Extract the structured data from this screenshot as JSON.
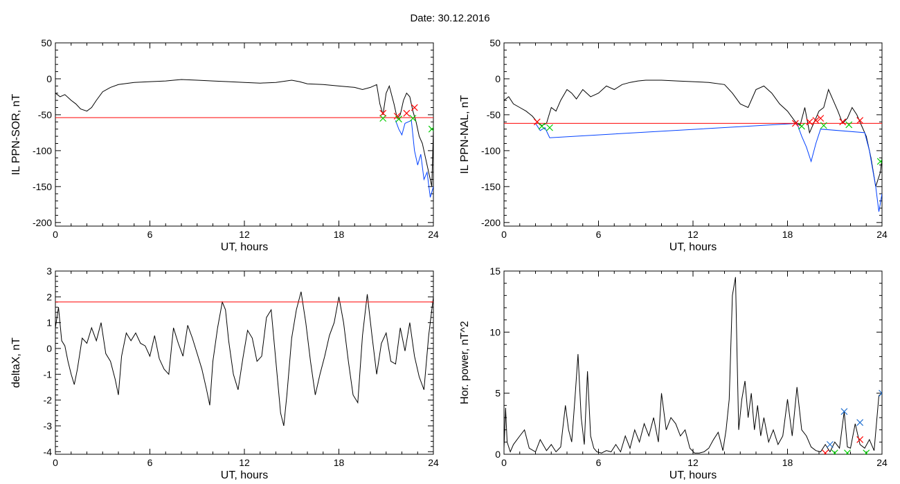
{
  "header": {
    "date_label": "Date:  30.12.2016"
  },
  "chart_data": [
    {
      "id": "top-left",
      "type": "line",
      "xlabel": "UT, hours",
      "ylabel": "IL PPN-SOR, nT",
      "xlim": [
        0,
        24
      ],
      "ylim": [
        -205,
        50
      ],
      "xticks": [
        0,
        6,
        12,
        18,
        24
      ],
      "yticks": [
        50,
        0,
        -50,
        -100,
        -150,
        -200
      ],
      "threshold": -54,
      "threshold_color": "#ff0000",
      "series": [
        {
          "color": "#000000",
          "x": [
            0,
            0.3,
            0.6,
            1.0,
            1.3,
            1.6,
            2.0,
            2.3,
            2.6,
            3.0,
            3.5,
            4.0,
            5.0,
            6.0,
            7.0,
            8.0,
            9.0,
            10.0,
            11.0,
            12.0,
            13.0,
            14.0,
            15.0,
            15.5,
            16.0,
            17.0,
            18.0,
            19.0,
            19.5,
            20.0,
            20.4,
            20.6,
            20.8,
            21.0,
            21.2,
            21.5,
            21.7,
            21.9,
            22.1,
            22.3,
            22.5,
            22.7,
            22.9,
            23.1,
            23.3,
            23.5,
            23.7,
            23.9,
            24.0
          ],
          "y": [
            -20,
            -25,
            -22,
            -30,
            -35,
            -42,
            -45,
            -40,
            -30,
            -18,
            -12,
            -8,
            -5,
            -4,
            -3,
            -1,
            -2,
            -3,
            -4,
            -5,
            -6,
            -5,
            -2,
            -4,
            -7,
            -8,
            -10,
            -12,
            -15,
            -12,
            -8,
            -35,
            -50,
            -20,
            -10,
            -35,
            -55,
            -50,
            -30,
            -20,
            -25,
            -45,
            -60,
            -80,
            -90,
            -110,
            -130,
            -150,
            -70
          ]
        },
        {
          "color": "#0040ff",
          "x": [
            21.6,
            21.8,
            22.0,
            22.2,
            22.6,
            22.8,
            23.0,
            23.2,
            23.4,
            23.6,
            23.8,
            24.0
          ],
          "y": [
            -58,
            -70,
            -78,
            -62,
            -58,
            -100,
            -120,
            -105,
            -140,
            -130,
            -165,
            -150
          ]
        }
      ],
      "markers": [
        {
          "symbol": "x",
          "color": "#ff0000",
          "points": [
            [
              20.8,
              -48
            ],
            [
              21.7,
              -52
            ],
            [
              22.3,
              -48
            ],
            [
              22.8,
              -40
            ]
          ]
        },
        {
          "symbol": "x",
          "color": "#00cc00",
          "points": [
            [
              20.8,
              -55
            ],
            [
              21.8,
              -56
            ],
            [
              22.7,
              -55
            ],
            [
              23.9,
              -70
            ]
          ]
        }
      ]
    },
    {
      "id": "top-right",
      "type": "line",
      "xlabel": "UT, hours",
      "ylabel": "IL PPN-NAL, nT",
      "xlim": [
        0,
        24
      ],
      "ylim": [
        -205,
        50
      ],
      "xticks": [
        0,
        6,
        12,
        18,
        24
      ],
      "yticks": [
        50,
        0,
        -50,
        -100,
        -150,
        -200
      ],
      "threshold": -62,
      "threshold_color": "#ff0000",
      "series": [
        {
          "color": "#000000",
          "x": [
            0,
            0.3,
            0.6,
            1.0,
            1.4,
            1.8,
            2.1,
            2.4,
            2.7,
            3.0,
            3.3,
            3.6,
            4.0,
            4.3,
            4.6,
            5.0,
            5.5,
            6.0,
            6.5,
            7.0,
            7.5,
            8.0,
            8.5,
            9.0,
            10.0,
            11.0,
            12.0,
            13.0,
            14.0,
            14.5,
            15.0,
            15.5,
            16.0,
            16.5,
            17.0,
            17.5,
            18.0,
            18.5,
            18.8,
            19.1,
            19.4,
            19.7,
            20.0,
            20.3,
            20.6,
            20.9,
            21.2,
            21.5,
            21.8,
            22.1,
            22.4,
            22.7,
            23.0,
            23.3,
            23.6,
            23.9,
            24.0
          ],
          "y": [
            -30,
            -25,
            -35,
            -40,
            -45,
            -52,
            -60,
            -65,
            -62,
            -40,
            -45,
            -30,
            -15,
            -20,
            -28,
            -15,
            -25,
            -20,
            -10,
            -15,
            -8,
            -5,
            -3,
            -2,
            -2,
            -3,
            -4,
            -5,
            -8,
            -20,
            -35,
            -40,
            -15,
            -10,
            -20,
            -35,
            -45,
            -60,
            -65,
            -40,
            -75,
            -60,
            -45,
            -40,
            -15,
            -30,
            -45,
            -62,
            -55,
            -40,
            -50,
            -65,
            -80,
            -110,
            -150,
            -130,
            -110
          ]
        },
        {
          "color": "#0040ff",
          "x": [
            2.0,
            2.3,
            2.6,
            2.9,
            18.6,
            18.9,
            19.2,
            19.5,
            19.8,
            20.1,
            22.9,
            23.2,
            23.4,
            23.6,
            23.8,
            24.0
          ],
          "y": [
            -62,
            -72,
            -68,
            -82,
            -62,
            -80,
            -95,
            -115,
            -90,
            -70,
            -75,
            -100,
            -125,
            -150,
            -185,
            -160
          ]
        }
      ],
      "markers": [
        {
          "symbol": "x",
          "color": "#ff0000",
          "points": [
            [
              2.1,
              -60
            ],
            [
              18.5,
              -62
            ],
            [
              19.4,
              -60
            ],
            [
              19.8,
              -58
            ],
            [
              20.1,
              -55
            ],
            [
              21.5,
              -60
            ],
            [
              22.6,
              -58
            ]
          ]
        },
        {
          "symbol": "x",
          "color": "#00cc00",
          "points": [
            [
              2.4,
              -66
            ],
            [
              2.9,
              -68
            ],
            [
              18.9,
              -66
            ],
            [
              20.3,
              -65
            ],
            [
              21.9,
              -64
            ],
            [
              23.9,
              -115
            ]
          ]
        }
      ]
    },
    {
      "id": "bottom-left",
      "type": "line",
      "xlabel": "UT, hours",
      "ylabel": "deltaX, nT",
      "xlim": [
        0,
        24
      ],
      "ylim": [
        -4.1,
        3
      ],
      "xticks": [
        0,
        6,
        12,
        18,
        24
      ],
      "yticks": [
        3,
        2,
        1,
        0,
        -1,
        -2,
        -3,
        -4
      ],
      "threshold": 1.8,
      "threshold_color": "#ff0000",
      "series": [
        {
          "color": "#000000",
          "x": [
            0,
            0.2,
            0.4,
            0.6,
            0.8,
            1.0,
            1.2,
            1.4,
            1.7,
            2.0,
            2.3,
            2.6,
            2.9,
            3.2,
            3.5,
            3.8,
            4.0,
            4.2,
            4.5,
            4.8,
            5.1,
            5.4,
            5.7,
            6.0,
            6.3,
            6.6,
            6.9,
            7.2,
            7.5,
            7.8,
            8.1,
            8.4,
            8.7,
            9.0,
            9.3,
            9.6,
            9.8,
            10.0,
            10.3,
            10.6,
            10.8,
            11.0,
            11.3,
            11.6,
            11.9,
            12.2,
            12.5,
            12.8,
            13.1,
            13.4,
            13.7,
            14.0,
            14.3,
            14.5,
            14.7,
            15.0,
            15.3,
            15.6,
            15.9,
            16.2,
            16.5,
            16.8,
            17.1,
            17.4,
            17.7,
            18.0,
            18.3,
            18.6,
            18.9,
            19.2,
            19.5,
            19.8,
            20.1,
            20.4,
            20.7,
            21.0,
            21.3,
            21.6,
            21.9,
            22.2,
            22.5,
            22.8,
            23.1,
            23.4,
            23.7,
            24.0
          ],
          "y": [
            0.8,
            1.6,
            0.3,
            0.1,
            -0.5,
            -1.0,
            -1.4,
            -0.8,
            0.4,
            0.2,
            0.8,
            0.3,
            1.0,
            -0.2,
            -0.5,
            -1.2,
            -1.8,
            -0.3,
            0.6,
            0.3,
            0.6,
            0.2,
            0.1,
            -0.3,
            0.5,
            -0.4,
            -0.8,
            -1.0,
            0.8,
            0.2,
            -0.3,
            0.9,
            0.4,
            -0.2,
            -0.8,
            -1.6,
            -2.2,
            -0.5,
            0.8,
            1.8,
            1.5,
            0.3,
            -1.0,
            -1.6,
            -0.4,
            0.7,
            0.4,
            -0.5,
            -0.3,
            1.2,
            1.5,
            -0.5,
            -2.5,
            -3.0,
            -1.8,
            0.4,
            1.5,
            2.2,
            1.0,
            -0.5,
            -1.8,
            -1.0,
            -0.3,
            0.5,
            1.0,
            2.0,
            1.0,
            -0.5,
            -1.8,
            -2.1,
            0.5,
            2.1,
            0.5,
            -1.0,
            0.2,
            0.6,
            -0.5,
            -0.6,
            0.8,
            -0.1,
            1.0,
            -0.3,
            -1.1,
            -1.6,
            0.5,
            2.0
          ]
        }
      ],
      "markers": []
    },
    {
      "id": "bottom-right",
      "type": "line",
      "xlabel": "UT, hours",
      "ylabel": "Hor. power, nT^2",
      "xlim": [
        0,
        24
      ],
      "ylim": [
        0,
        15
      ],
      "xticks": [
        0,
        6,
        12,
        18,
        24
      ],
      "yticks": [
        15,
        10,
        5,
        0
      ],
      "series": [
        {
          "color": "#000000",
          "x": [
            0,
            0.1,
            0.2,
            0.4,
            0.6,
            1.0,
            1.3,
            1.6,
            2.0,
            2.3,
            2.7,
            3.0,
            3.3,
            3.6,
            3.9,
            4.1,
            4.3,
            4.5,
            4.7,
            4.9,
            5.1,
            5.3,
            5.5,
            5.7,
            5.9,
            6.2,
            6.5,
            6.8,
            7.1,
            7.4,
            7.7,
            8.0,
            8.3,
            8.6,
            8.9,
            9.2,
            9.5,
            9.8,
            10.0,
            10.3,
            10.6,
            10.9,
            11.2,
            11.5,
            11.8,
            12.1,
            12.4,
            12.7,
            13.0,
            13.3,
            13.6,
            13.9,
            14.1,
            14.3,
            14.5,
            14.7,
            14.8,
            14.9,
            15.1,
            15.3,
            15.5,
            15.7,
            15.9,
            16.1,
            16.3,
            16.5,
            16.8,
            17.1,
            17.4,
            17.7,
            18.0,
            18.3,
            18.6,
            18.9,
            19.2,
            19.5,
            19.8,
            20.1,
            20.4,
            20.7,
            21.0,
            21.3,
            21.6,
            21.8,
            22.0,
            22.3,
            22.6,
            22.9,
            23.2,
            23.5,
            23.8,
            24.0
          ],
          "y": [
            0.5,
            3.8,
            1.0,
            0.2,
            0.8,
            1.5,
            2.0,
            0.5,
            0.2,
            1.2,
            0.3,
            0.8,
            0.2,
            0.6,
            4.0,
            2.0,
            1.0,
            4.5,
            8.2,
            3.0,
            0.8,
            6.8,
            1.5,
            0.5,
            0.2,
            0.1,
            0.3,
            0.2,
            0.8,
            0.2,
            1.5,
            0.5,
            2.0,
            1.0,
            2.5,
            1.5,
            3.0,
            1.0,
            5.0,
            2.0,
            3.0,
            2.5,
            1.5,
            2.0,
            0.5,
            0.1,
            0.1,
            0.2,
            0.5,
            1.2,
            1.8,
            0.3,
            2.0,
            4.5,
            13.0,
            14.5,
            8.0,
            2.0,
            4.5,
            6.0,
            3.0,
            5.0,
            2.0,
            4.0,
            1.5,
            3.0,
            1.0,
            2.0,
            0.8,
            1.5,
            4.5,
            1.5,
            5.5,
            2.0,
            1.5,
            0.6,
            0.3,
            0.2,
            0.8,
            0.2,
            1.0,
            0.5,
            3.5,
            0.6,
            0.5,
            2.5,
            0.8,
            0.5,
            1.2,
            0.3,
            4.8,
            5.0
          ]
        }
      ],
      "markers": [
        {
          "symbol": "x",
          "color": "#1f6fd0",
          "points": [
            [
              20.7,
              0.8
            ],
            [
              21.6,
              3.5
            ],
            [
              22.6,
              2.6
            ],
            [
              24.0,
              5.0
            ]
          ]
        },
        {
          "symbol": "x",
          "color": "#ff0000",
          "points": [
            [
              20.4,
              0.1
            ],
            [
              22.6,
              1.2
            ]
          ]
        },
        {
          "symbol": "x",
          "color": "#00cc00",
          "points": [
            [
              21.0,
              0.1
            ],
            [
              21.8,
              0.1
            ],
            [
              23.0,
              0.1
            ]
          ]
        }
      ]
    }
  ]
}
